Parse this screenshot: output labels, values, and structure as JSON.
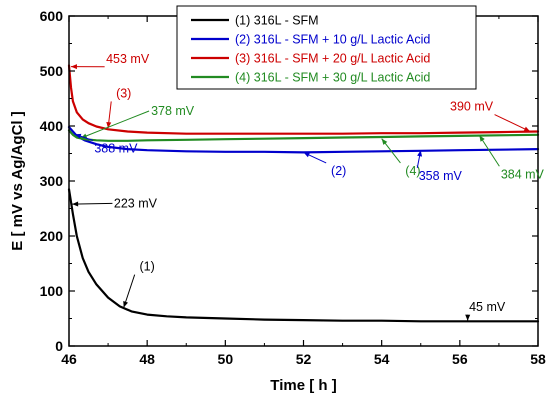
{
  "chart_data": {
    "type": "line",
    "xlabel": "Time [ h ]",
    "ylabel": "E [ mV vs Ag/AgCl ]",
    "xlim": [
      46,
      58
    ],
    "ylim": [
      0,
      600
    ],
    "x_ticks": [
      "46",
      "48",
      "50",
      "52",
      "54",
      "56",
      "58"
    ],
    "y_ticks": [
      "0",
      "100",
      "200",
      "300",
      "400",
      "500",
      "600"
    ],
    "grid": false,
    "legend_position": "top-right",
    "series": [
      {
        "name": "(1) 316L - SFM",
        "color": "#000000",
        "x": [
          46.0,
          46.1,
          46.2,
          46.35,
          46.5,
          46.7,
          47.0,
          47.3,
          47.6,
          48.0,
          48.5,
          49.0,
          50.0,
          51.0,
          52.0,
          53.0,
          54.0,
          55.0,
          56.0,
          57.0,
          58.0
        ],
        "y": [
          285,
          240,
          200,
          160,
          135,
          112,
          88,
          72,
          63,
          57,
          54,
          52,
          50,
          48,
          47,
          46,
          46,
          45,
          45,
          45,
          45
        ]
      },
      {
        "name": "(2) 316L - SFM + 10 g/L Lactic Acid",
        "color": "#0000cc",
        "x": [
          46.0,
          46.1,
          46.2,
          46.4,
          46.7,
          47.0,
          47.5,
          48.0,
          49.0,
          50.0,
          51.0,
          52.0,
          53.0,
          54.0,
          55.0,
          56.0,
          57.0,
          58.0
        ],
        "y": [
          398,
          390,
          382,
          374,
          367,
          362,
          358,
          356,
          354,
          353,
          353,
          352,
          353,
          354,
          355,
          356,
          357,
          358
        ]
      },
      {
        "name": "(3) 316L - SFM + 20 g/L Lactic Acid",
        "color": "#cc0000",
        "x": [
          46.0,
          46.05,
          46.1,
          46.2,
          46.35,
          46.5,
          46.7,
          47.0,
          47.5,
          48.0,
          49.0,
          50.0,
          51.0,
          52.0,
          53.0,
          54.0,
          55.0,
          56.0,
          57.0,
          58.0
        ],
        "y": [
          510,
          470,
          445,
          425,
          412,
          405,
          399,
          394,
          390,
          388,
          386,
          386,
          386,
          386,
          386,
          387,
          387,
          388,
          389,
          390
        ]
      },
      {
        "name": "(4) 316L - SFM + 30 g/L Lactic Acid",
        "color": "#228b22",
        "x": [
          46.0,
          46.1,
          46.2,
          46.4,
          46.7,
          47.0,
          47.5,
          48.0,
          49.0,
          50.0,
          51.0,
          52.0,
          53.0,
          54.0,
          55.0,
          56.0,
          57.0,
          58.0
        ],
        "y": [
          392,
          384,
          379,
          376,
          374,
          373,
          373,
          374,
          375,
          376,
          377,
          378,
          379,
          380,
          381,
          382,
          383,
          384
        ]
      }
    ],
    "annotations": [
      {
        "text": "453 mV",
        "color": "#cc0000",
        "x": 47.5,
        "y": 515,
        "ax": 46.05,
        "ay": 508,
        "anchor": "middle"
      },
      {
        "text": "(3)",
        "color": "#cc0000",
        "x": 47.4,
        "y": 452,
        "ax": 47.0,
        "ay": 396,
        "anchor": "middle"
      },
      {
        "text": "378 mV",
        "color": "#228b22",
        "x": 48.1,
        "y": 420,
        "ax": 46.3,
        "ay": 378,
        "anchor": "start"
      },
      {
        "text": "388 mV",
        "color": "#0000cc",
        "x": 47.2,
        "y": 352,
        "ax": 46.15,
        "ay": 385,
        "anchor": "middle"
      },
      {
        "text": "223 mV",
        "color": "#000000",
        "x": 47.7,
        "y": 252,
        "ax": 46.08,
        "ay": 258,
        "anchor": "middle"
      },
      {
        "text": "(1)",
        "color": "#000000",
        "x": 48.0,
        "y": 137,
        "ax": 47.4,
        "ay": 70,
        "anchor": "middle"
      },
      {
        "text": "(2)",
        "color": "#0000cc",
        "x": 52.9,
        "y": 311,
        "ax": 52.0,
        "ay": 352,
        "anchor": "middle"
      },
      {
        "text": "(4)",
        "color": "#228b22",
        "x": 54.8,
        "y": 311,
        "ax": 54.0,
        "ay": 377,
        "anchor": "middle"
      },
      {
        "text": "390 mV",
        "color": "#cc0000",
        "x": 56.3,
        "y": 428,
        "ax": 57.8,
        "ay": 390,
        "anchor": "middle"
      },
      {
        "text": "358 mV",
        "color": "#0000cc",
        "x": 55.5,
        "y": 302,
        "ax": 55.0,
        "ay": 356,
        "anchor": "middle"
      },
      {
        "text": "384 mV",
        "color": "#228b22",
        "x": 57.6,
        "y": 305,
        "ax": 56.5,
        "ay": 383,
        "anchor": "middle"
      },
      {
        "text": "45 mV",
        "color": "#000000",
        "x": 56.7,
        "y": 64,
        "ax": 56.2,
        "ay": 46,
        "anchor": "middle"
      }
    ]
  }
}
